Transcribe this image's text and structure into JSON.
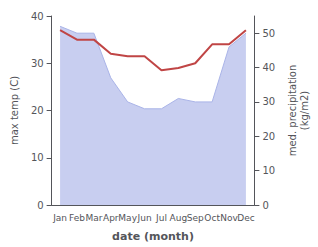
{
  "chart_data": {
    "type": "line",
    "categories": [
      "Jan",
      "Feb",
      "Mar",
      "Apr",
      "May",
      "Jun",
      "Jul",
      "Aug",
      "Sep",
      "Oct",
      "Nov",
      "Dec"
    ],
    "series": [
      {
        "type": "area",
        "axis": "y2",
        "color": "#aab4e8",
        "values": [
          52,
          50,
          50,
          37,
          30,
          28,
          28,
          31,
          30,
          30,
          46,
          50
        ]
      },
      {
        "type": "line",
        "color": "#c04545",
        "values": [
          37,
          35,
          35,
          32,
          31.5,
          31.5,
          28.5,
          29,
          30,
          34,
          34,
          37
        ]
      }
    ],
    "xlabel": "date (month)",
    "ylabel": "max temp (C)",
    "y2label": "med. precipitation\n(kg/m2)",
    "ylim": [
      0,
      40
    ],
    "yticks": [
      0,
      10,
      20,
      30,
      40
    ],
    "y2lim": [
      0,
      55
    ],
    "y2ticks": [
      0,
      10,
      20,
      30,
      40,
      50
    ],
    "grid": false
  }
}
